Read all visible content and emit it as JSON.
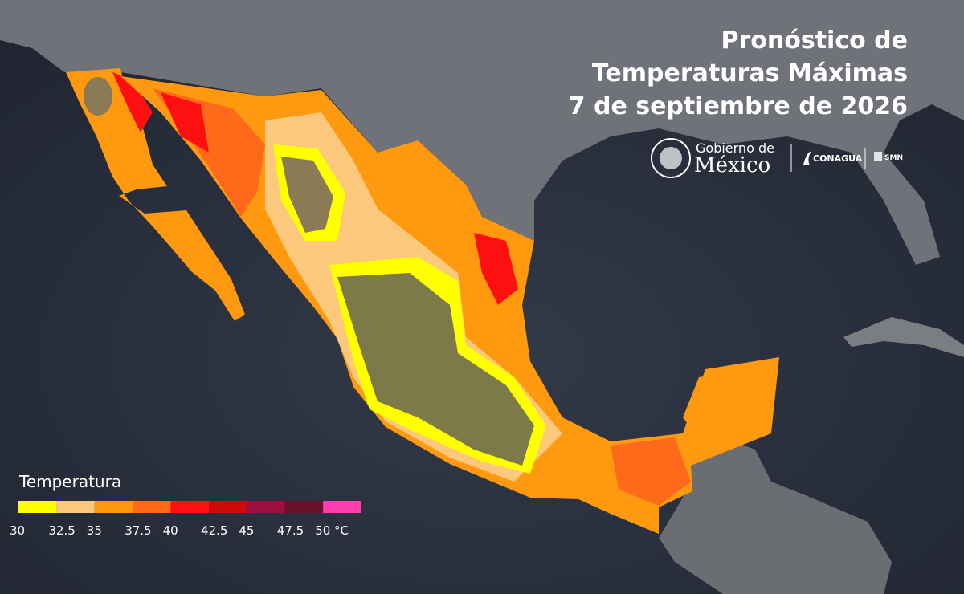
{
  "header": {
    "title_lines": [
      "Pronóstico de",
      "Temperaturas Máximas",
      "7 de septiembre de 2026"
    ]
  },
  "logos": {
    "gobierno_line1": "Gobierno de",
    "gobierno_line2": "México",
    "conagua": "CONAGUA",
    "smn": "SMN"
  },
  "legend": {
    "title": "Temperatura",
    "colors": [
      "#ffff00",
      "#fbc87c",
      "#ff9a10",
      "#ff6a1a",
      "#ff1010",
      "#cc0a0a",
      "#9c1040",
      "#66102a",
      "#ff3fb0"
    ],
    "labels": [
      "30",
      "32.5",
      "35",
      "37.5",
      "40",
      "42.5",
      "45",
      "47.5",
      "50 °C"
    ]
  }
}
